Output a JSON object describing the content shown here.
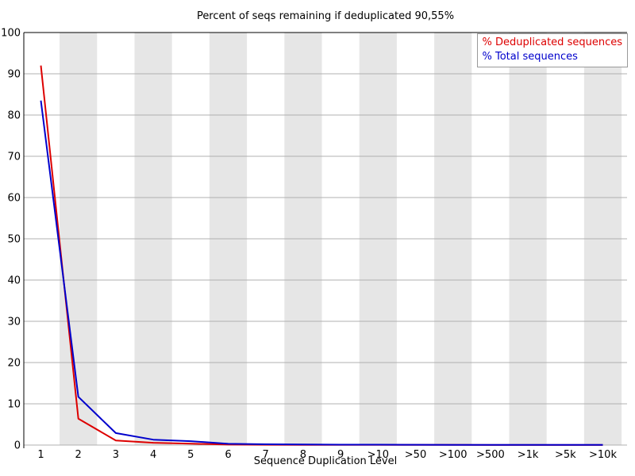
{
  "chart_data": {
    "type": "line",
    "title": "Percent of seqs remaining if deduplicated 90,55%",
    "xlabel": "Sequence Duplication Level",
    "ylabel": "",
    "ylim": [
      0,
      100
    ],
    "yticks": [
      0,
      10,
      20,
      30,
      40,
      50,
      60,
      70,
      80,
      90,
      100
    ],
    "categories": [
      "1",
      "2",
      "3",
      "4",
      "5",
      "6",
      "7",
      "8",
      "9",
      ">10",
      ">50",
      ">100",
      ">500",
      ">1k",
      ">5k",
      ">10k"
    ],
    "series": [
      {
        "name": "% Deduplicated sequences",
        "color": "#dd0000",
        "values": [
          92.0,
          6.4,
          1.1,
          0.55,
          0.35,
          0.12,
          0.08,
          0.06,
          0.05,
          0.04,
          0.03,
          0.03,
          0.02,
          0.02,
          0.02,
          0.02
        ]
      },
      {
        "name": "% Total sequences",
        "color": "#0000cc",
        "values": [
          83.5,
          11.7,
          2.9,
          1.3,
          0.95,
          0.3,
          0.2,
          0.13,
          0.1,
          0.09,
          0.07,
          0.06,
          0.05,
          0.05,
          0.04,
          0.04
        ]
      }
    ],
    "legend_position": "top-right",
    "grid": "horizontal",
    "band_color": "#e6e6e6",
    "grid_color": "#b0b0b0",
    "axis_color": "#000000",
    "deduplicated_percent_label": "90,55%"
  }
}
